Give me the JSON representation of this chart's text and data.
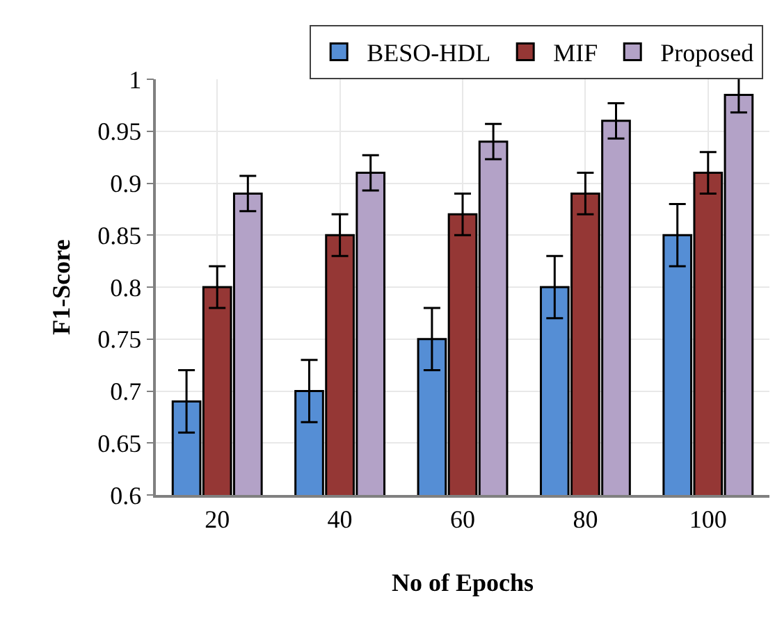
{
  "chart_data": {
    "type": "bar",
    "xlabel": "No of Epochs",
    "ylabel": "F1-Score",
    "categories": [
      "20",
      "40",
      "60",
      "80",
      "100"
    ],
    "series": [
      {
        "name": "BESO-HDL",
        "color": "#558ed5",
        "values": [
          0.69,
          0.7,
          0.75,
          0.8,
          0.85
        ],
        "errors": [
          0.03,
          0.03,
          0.03,
          0.03,
          0.03
        ]
      },
      {
        "name": "MIF",
        "color": "#953735",
        "values": [
          0.8,
          0.85,
          0.87,
          0.89,
          0.91
        ],
        "errors": [
          0.02,
          0.02,
          0.02,
          0.02,
          0.02
        ]
      },
      {
        "name": "Proposed",
        "color": "#b3a2c7",
        "values": [
          0.89,
          0.91,
          0.94,
          0.96,
          0.985
        ],
        "errors": [
          0.017,
          0.017,
          0.017,
          0.017,
          0.017
        ]
      }
    ],
    "ylim": [
      0.6,
      1
    ],
    "yticks": [
      0.6,
      0.65,
      0.7,
      0.75,
      0.8,
      0.85,
      0.9,
      0.95,
      1
    ],
    "grid": true,
    "legend": "top"
  }
}
